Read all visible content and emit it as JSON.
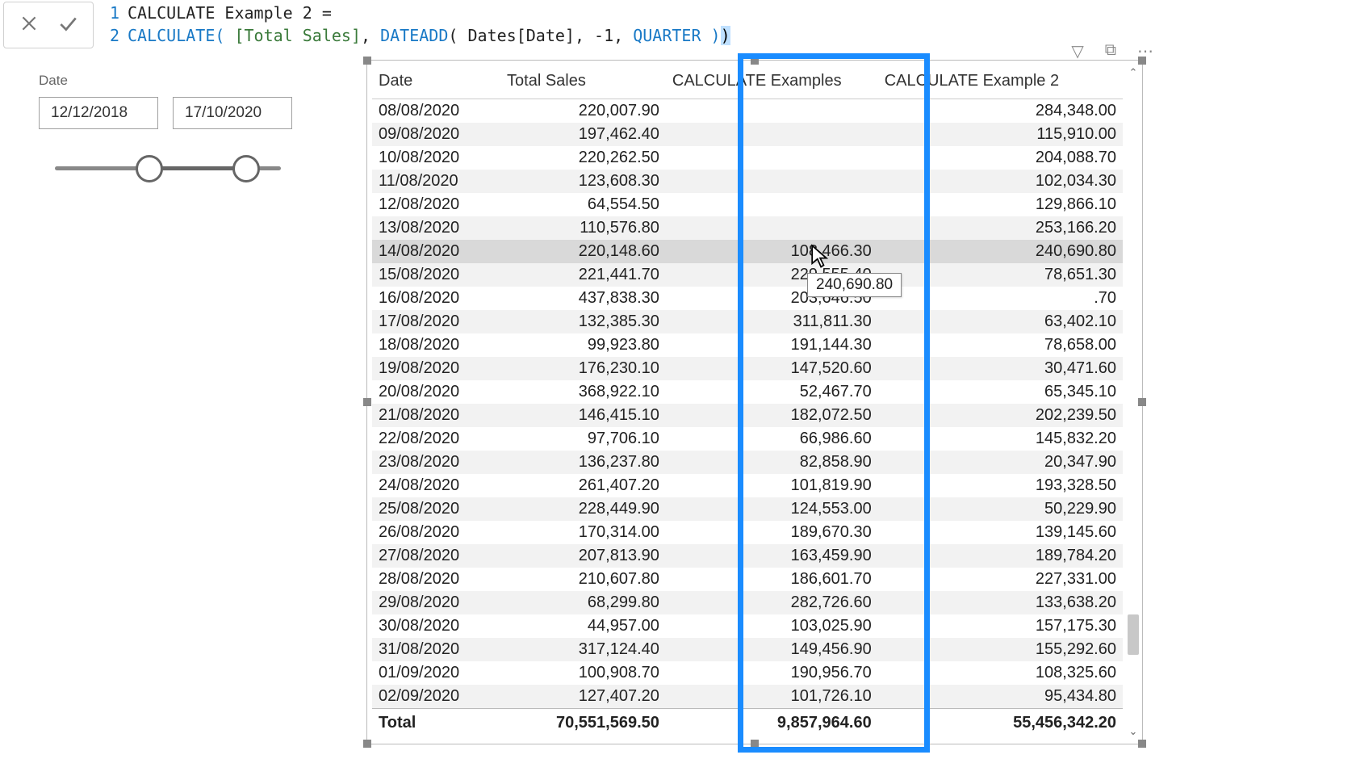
{
  "formula": {
    "line1_num": "1",
    "line2_num": "2",
    "measure_name": "CALCULATE Example 2 =",
    "fn_calc": "CALCULATE",
    "open_paren": "(",
    "col_ref": " [Total Sales]",
    "comma1": ", ",
    "fn_dateadd": "DATEADD",
    "open_paren2": "( ",
    "tbl_col": "Dates[Date]",
    "comma2": ", ",
    "num_neg1": "-1",
    "comma3": ", ",
    "kw_quarter": "QUARTER ",
    "close1": ")",
    "close2": ")"
  },
  "slicer": {
    "title": "Date",
    "from": "12/12/2018",
    "to": "17/10/2020"
  },
  "table": {
    "columns": [
      "Date",
      "Total Sales",
      "CALCULATE Examples",
      "CALCULATE Example 2"
    ],
    "rows": [
      [
        "08/08/2020",
        "220,007.90",
        "",
        "284,348.00"
      ],
      [
        "09/08/2020",
        "197,462.40",
        "",
        "115,910.00"
      ],
      [
        "10/08/2020",
        "220,262.50",
        "",
        "204,088.70"
      ],
      [
        "11/08/2020",
        "123,608.30",
        "",
        "102,034.30"
      ],
      [
        "12/08/2020",
        "64,554.50",
        "",
        "129,866.10"
      ],
      [
        "13/08/2020",
        "110,576.80",
        "",
        "253,166.20"
      ],
      [
        "14/08/2020",
        "220,148.60",
        "108,466.30",
        "240,690.80"
      ],
      [
        "15/08/2020",
        "221,441.70",
        "229,555.40",
        "78,651.30"
      ],
      [
        "16/08/2020",
        "437,838.30",
        "203,646.50",
        ".70"
      ],
      [
        "17/08/2020",
        "132,385.30",
        "311,811.30",
        "63,402.10"
      ],
      [
        "18/08/2020",
        "99,923.80",
        "191,144.30",
        "78,658.00"
      ],
      [
        "19/08/2020",
        "176,230.10",
        "147,520.60",
        "30,471.60"
      ],
      [
        "20/08/2020",
        "368,922.10",
        "52,467.70",
        "65,345.10"
      ],
      [
        "21/08/2020",
        "146,415.10",
        "182,072.50",
        "202,239.50"
      ],
      [
        "22/08/2020",
        "97,706.10",
        "66,986.60",
        "145,832.20"
      ],
      [
        "23/08/2020",
        "136,237.80",
        "82,858.90",
        "20,347.90"
      ],
      [
        "24/08/2020",
        "261,407.20",
        "101,819.90",
        "193,328.50"
      ],
      [
        "25/08/2020",
        "228,449.90",
        "124,553.00",
        "50,229.90"
      ],
      [
        "26/08/2020",
        "170,314.00",
        "189,670.30",
        "139,145.60"
      ],
      [
        "27/08/2020",
        "207,813.90",
        "163,459.90",
        "189,784.20"
      ],
      [
        "28/08/2020",
        "210,607.80",
        "186,601.70",
        "227,331.00"
      ],
      [
        "29/08/2020",
        "68,299.80",
        "282,726.60",
        "133,638.20"
      ],
      [
        "30/08/2020",
        "44,957.00",
        "103,025.90",
        "157,175.30"
      ],
      [
        "31/08/2020",
        "317,124.40",
        "149,456.90",
        "155,292.60"
      ],
      [
        "01/09/2020",
        "100,908.70",
        "190,956.70",
        "108,325.60"
      ],
      [
        "02/09/2020",
        "127,407.20",
        "101,726.10",
        "95,434.80"
      ]
    ],
    "highlight_row_index": 6,
    "total_label": "Total",
    "totals": [
      "70,551,569.50",
      "9,857,964.60",
      "55,456,342.20"
    ]
  },
  "tooltip": {
    "text": "240,690.80"
  },
  "colors": {
    "blue_highlight": "#1a8cff",
    "fn": "#1979c6",
    "col": "#3a7a3a",
    "row_alt": "#f2f2f2",
    "row_sel": "#d9d9d9"
  }
}
